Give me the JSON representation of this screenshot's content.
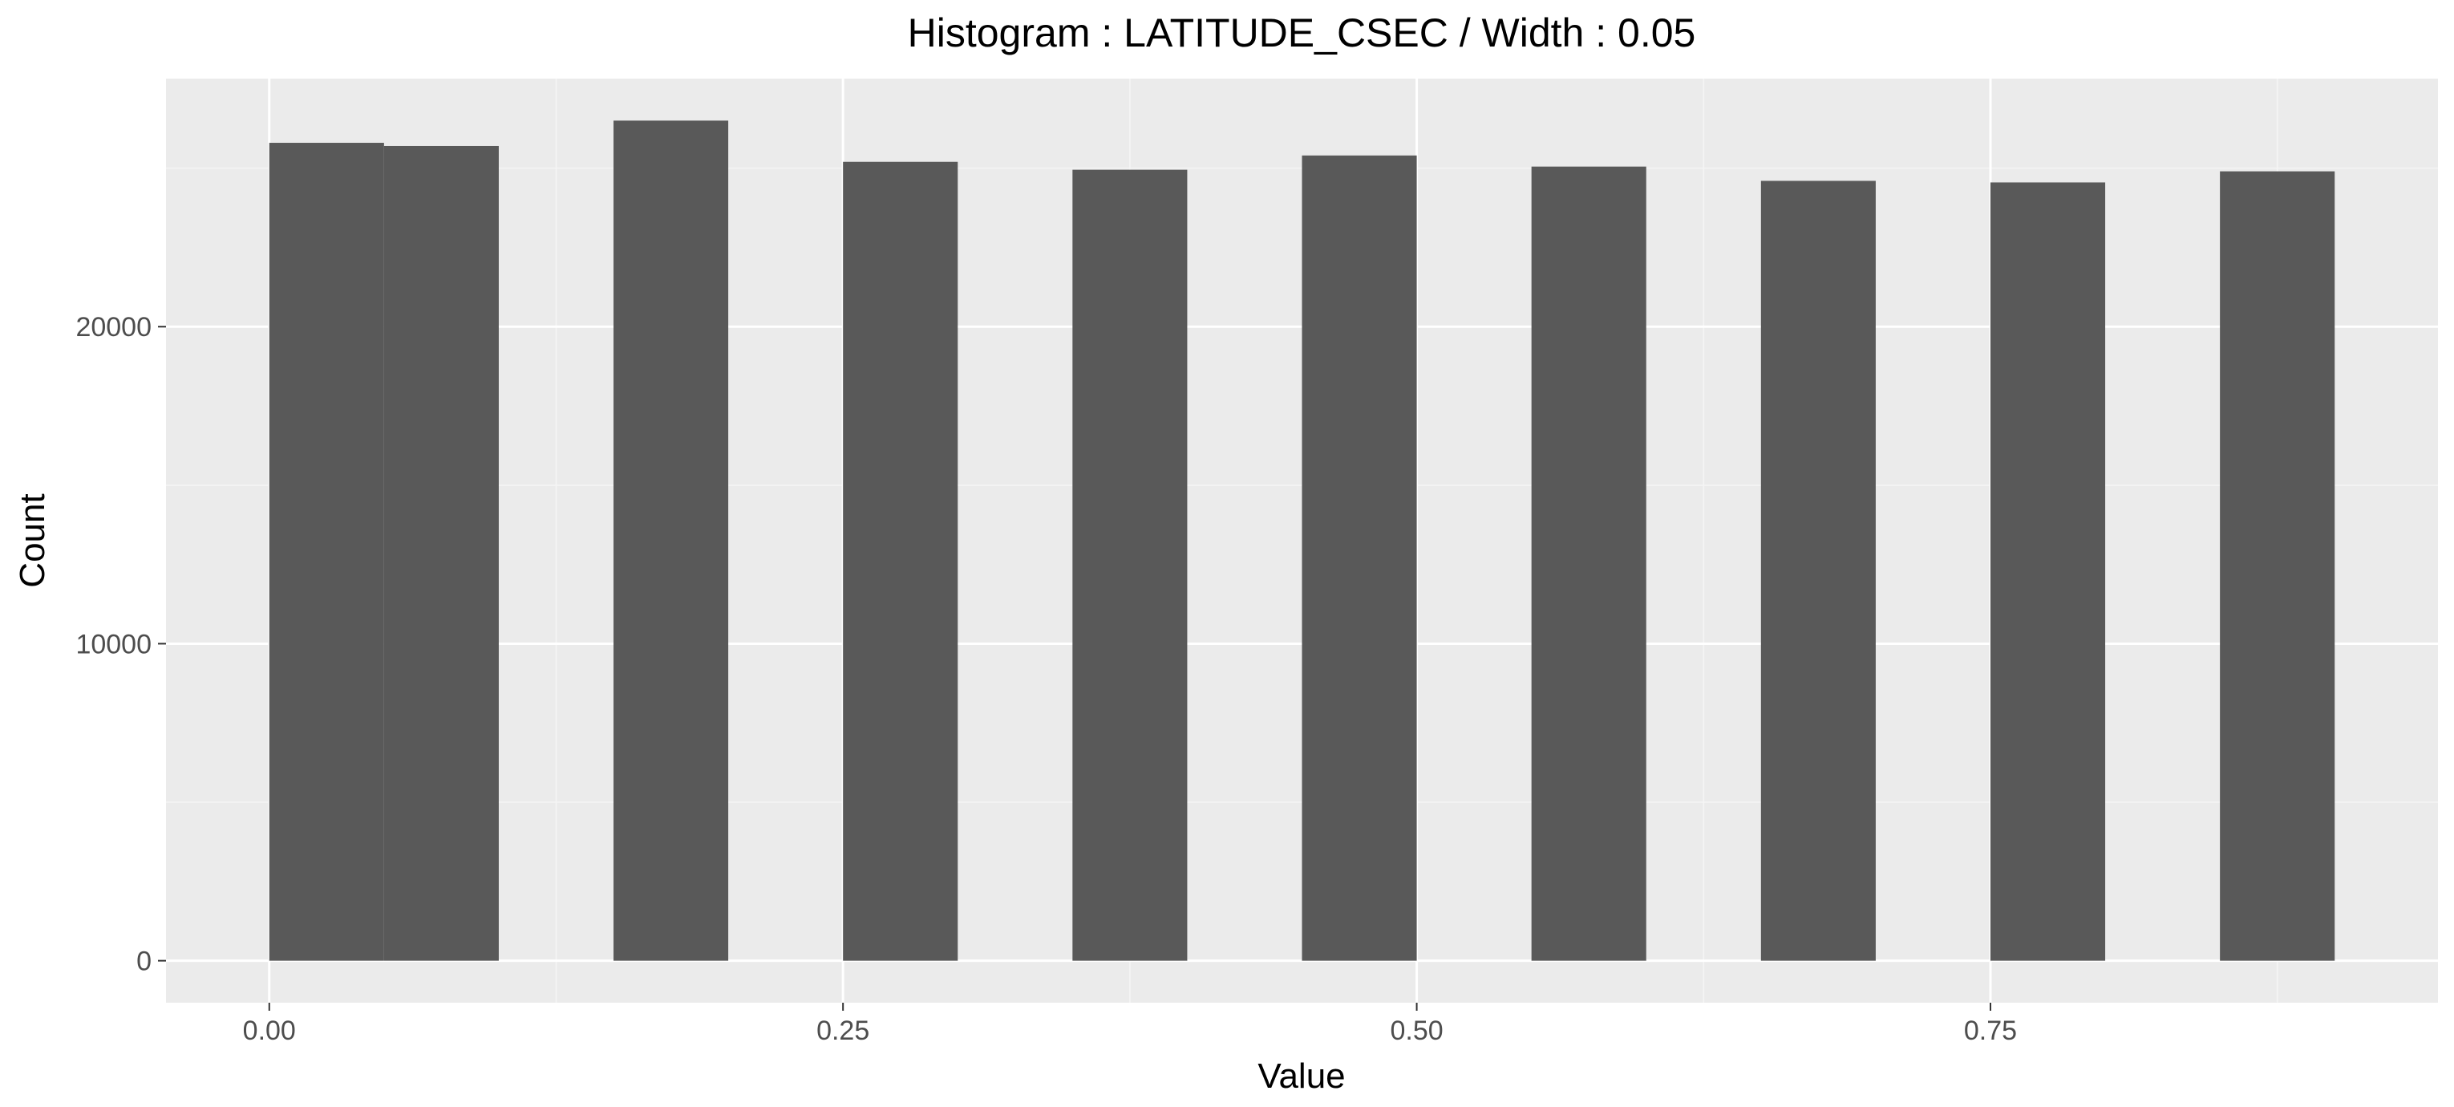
{
  "chart_data": {
    "type": "bar",
    "title": "Histogram : LATITUDE_CSEC / Width : 0.05",
    "xlabel": "Value",
    "ylabel": "Count",
    "bin_width": 0.05,
    "bins": [
      {
        "start": 0.0,
        "end": 0.05,
        "count": 25800
      },
      {
        "start": 0.05,
        "end": 0.1,
        "count": 25700
      },
      {
        "start": 0.15,
        "end": 0.2,
        "count": 26500
      },
      {
        "start": 0.25,
        "end": 0.3,
        "count": 25200
      },
      {
        "start": 0.35,
        "end": 0.4,
        "count": 24950
      },
      {
        "start": 0.45,
        "end": 0.5,
        "count": 25400
      },
      {
        "start": 0.55,
        "end": 0.6,
        "count": 25050
      },
      {
        "start": 0.65,
        "end": 0.7,
        "count": 24600
      },
      {
        "start": 0.75,
        "end": 0.8,
        "count": 24550
      },
      {
        "start": 0.85,
        "end": 0.9,
        "count": 24900
      }
    ],
    "xlim": [
      -0.045,
      0.945
    ],
    "ylim": [
      -1325,
      27825
    ],
    "x_ticks": [
      {
        "value": 0.0,
        "label": "0.00"
      },
      {
        "value": 0.25,
        "label": "0.25"
      },
      {
        "value": 0.5,
        "label": "0.50"
      },
      {
        "value": 0.75,
        "label": "0.75"
      }
    ],
    "x_minor_gridlines": [
      0.125,
      0.375,
      0.625,
      0.875
    ],
    "y_ticks": [
      {
        "value": 0,
        "label": "0"
      },
      {
        "value": 10000,
        "label": "10000"
      },
      {
        "value": 20000,
        "label": "20000"
      }
    ],
    "y_minor_gridlines": [
      5000,
      15000,
      25000
    ],
    "grid": true,
    "colors": {
      "bar": "#595959",
      "panel_background": "#ebebeb",
      "grid_major": "#ffffff",
      "grid_minor": "#f5f5f5",
      "tick_label": "#4d4d4d",
      "tick_mark": "#333333"
    }
  }
}
